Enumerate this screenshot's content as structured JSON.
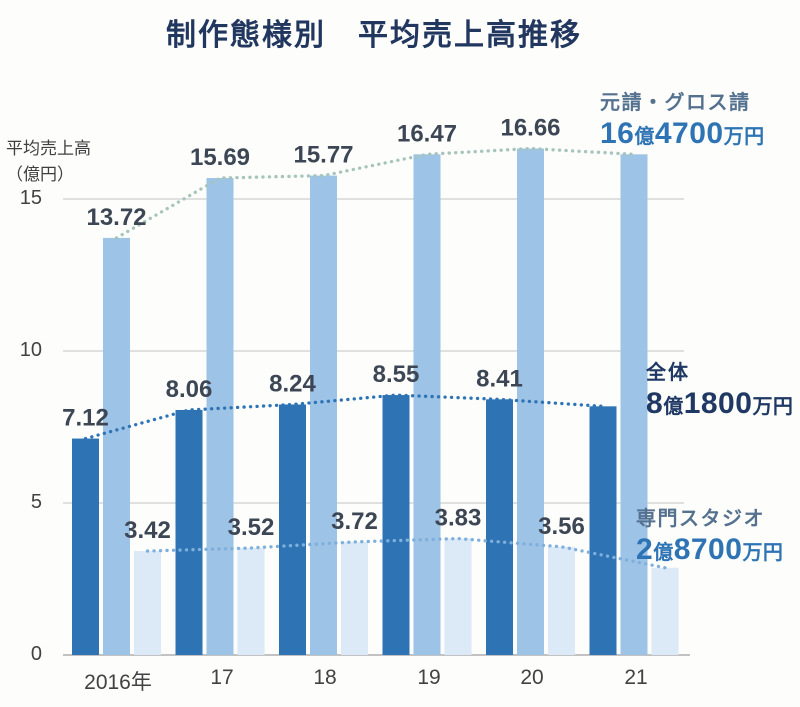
{
  "title": "制作態様別　平均売上高推移",
  "y_axis": {
    "label_line1": "平均売上高",
    "label_line2": "（億円）",
    "ticks": [
      "0",
      "5",
      "10",
      "15"
    ]
  },
  "x_axis": {
    "labels": [
      "2016年",
      "17",
      "18",
      "19",
      "20",
      "21"
    ]
  },
  "legends": [
    {
      "label": "元請・グロス請",
      "num1": "16",
      "unit1": "億",
      "num2": "4700",
      "unit2": "万円"
    },
    {
      "label": "全体",
      "num1": "8",
      "unit1": "億",
      "num2": "1800",
      "unit2": "万円"
    },
    {
      "label": "専門スタジオ",
      "num1": "2",
      "unit1": "億",
      "num2": "8700",
      "unit2": "万円"
    }
  ],
  "colors": {
    "title_navy": "#22375F",
    "dark_bar": "#2E74B5",
    "light_bar": "#9DC3E6",
    "pale_bar": "#DCE9F6",
    "top_line": "#A5C4BB",
    "mid_line": "#2E74B5",
    "bottom_line": "#7FAFDC",
    "value_label": "#3C4654",
    "gridline": "#CFCFCF",
    "baseline": "#C2C2C2"
  },
  "chart_data": {
    "type": "bar",
    "title": "制作態様別　平均売上高推移",
    "ylabel": "平均売上高（億円）",
    "categories": [
      "2016年",
      "17",
      "18",
      "19",
      "20",
      "21"
    ],
    "series": [
      {
        "key": "zentai",
        "name": "全体",
        "values": [
          7.12,
          8.06,
          8.24,
          8.55,
          8.41,
          8.18
        ],
        "bar_color": "#2E74B5",
        "line_color": "#2E74B5",
        "final_value_label": "8億1800万円"
      },
      {
        "key": "motouke",
        "name": "元請・グロス請",
        "values": [
          13.72,
          15.69,
          15.77,
          16.47,
          16.66,
          16.47
        ],
        "bar_color": "#9DC3E6",
        "line_color": "#A5C4BB",
        "final_value_label": "16億4700万円"
      },
      {
        "key": "senmon",
        "name": "専門スタジオ",
        "values": [
          3.42,
          3.52,
          3.72,
          3.83,
          3.56,
          2.87
        ],
        "bar_color": "#DCE9F6",
        "line_color": "#7FAFDC",
        "final_value_label": "2億8700万円"
      }
    ],
    "ylim": [
      0,
      17
    ],
    "yticks": [
      0,
      5,
      10,
      15
    ],
    "grid": "horizontal",
    "overlay_dotted_trend_lines": true,
    "value_labels_shown_for_categories": [
      "2016年",
      "17",
      "18",
      "19",
      "20"
    ],
    "legend_position": "right"
  }
}
